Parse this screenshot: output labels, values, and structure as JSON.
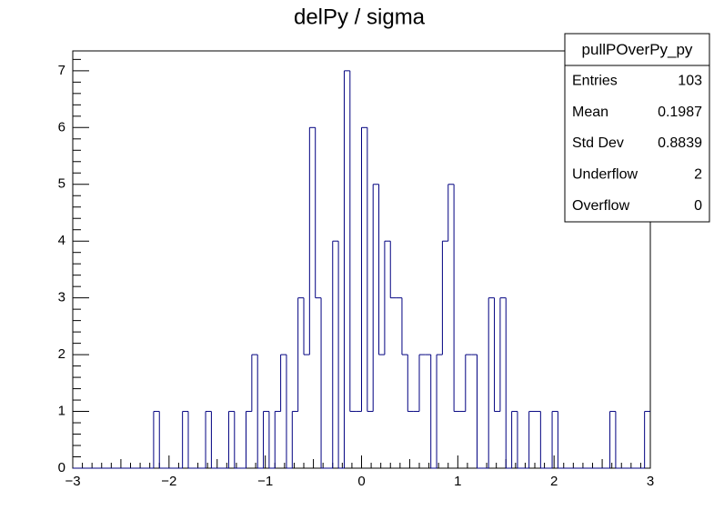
{
  "chart_data": {
    "type": "histogram",
    "title": "delPy / sigma",
    "bins": [
      -3,
      -2.94,
      -2.88,
      -2.82,
      -2.76,
      -2.7,
      -2.64,
      -2.58,
      -2.52,
      -2.46,
      -2.4,
      -2.34,
      -2.28,
      -2.22,
      -2.16,
      -2.1,
      -2.04,
      -1.98,
      -1.92,
      -1.86,
      -1.8,
      -1.74,
      -1.68,
      -1.62,
      -1.56,
      -1.5,
      -1.44,
      -1.38,
      -1.32,
      -1.26,
      -1.2,
      -1.14,
      -1.08,
      -1.02,
      -0.96,
      -0.9,
      -0.84,
      -0.78,
      -0.72,
      -0.66,
      -0.6,
      -0.54,
      -0.48,
      -0.42,
      -0.36,
      -0.3,
      -0.24,
      -0.18,
      -0.12,
      -0.06,
      0,
      0.06,
      0.12,
      0.18,
      0.24,
      0.3,
      0.36,
      0.42,
      0.48,
      0.54,
      0.6,
      0.66,
      0.72,
      0.78,
      0.84,
      0.9,
      0.96,
      1.02,
      1.08,
      1.14,
      1.2,
      1.26,
      1.32,
      1.38,
      1.44,
      1.5,
      1.56,
      1.62,
      1.68,
      1.74,
      1.8,
      1.86,
      1.92,
      1.98,
      2.04,
      2.1,
      2.16,
      2.22,
      2.28,
      2.34,
      2.4,
      2.46,
      2.52,
      2.58,
      2.64,
      2.7,
      2.76,
      2.82,
      2.88,
      2.94,
      3
    ],
    "values": [
      0,
      0,
      0,
      0,
      0,
      0,
      0,
      0,
      0,
      0,
      0,
      0,
      0,
      0,
      1,
      0,
      0,
      0,
      0,
      1,
      0,
      0,
      0,
      1,
      0,
      0,
      0,
      1,
      0,
      0,
      1,
      2,
      0,
      1,
      0,
      1,
      2,
      0,
      1,
      3,
      2,
      6,
      3,
      0,
      0,
      4,
      0,
      7,
      1,
      1,
      6,
      1,
      5,
      2,
      4,
      3,
      3,
      2,
      1,
      1,
      2,
      2,
      0,
      2,
      4,
      5,
      1,
      1,
      2,
      2,
      0,
      0,
      3,
      1,
      3,
      0,
      1,
      0,
      0,
      1,
      1,
      0,
      0,
      1,
      0,
      0,
      0,
      0,
      0,
      0,
      0,
      0,
      0,
      1,
      0,
      0,
      0,
      0,
      0,
      1
    ],
    "color": "#000080",
    "xlim": [
      -3,
      3
    ],
    "ylim": [
      0,
      7.35
    ],
    "xticks": [
      {
        "value": -3,
        "label": "−3"
      },
      {
        "value": -2,
        "label": "−2"
      },
      {
        "value": -1,
        "label": "−1"
      },
      0,
      1,
      2,
      3
    ],
    "yticks": [
      0,
      1,
      2,
      3,
      4,
      5,
      6,
      7
    ],
    "stats": {
      "title": "pullPOverPy_py",
      "rows": [
        [
          "Entries",
          "103"
        ],
        [
          "Mean",
          "0.1987"
        ],
        [
          "Std Dev",
          "0.8839"
        ],
        [
          "Underflow",
          "2"
        ],
        [
          "Overflow",
          "0"
        ]
      ]
    }
  }
}
